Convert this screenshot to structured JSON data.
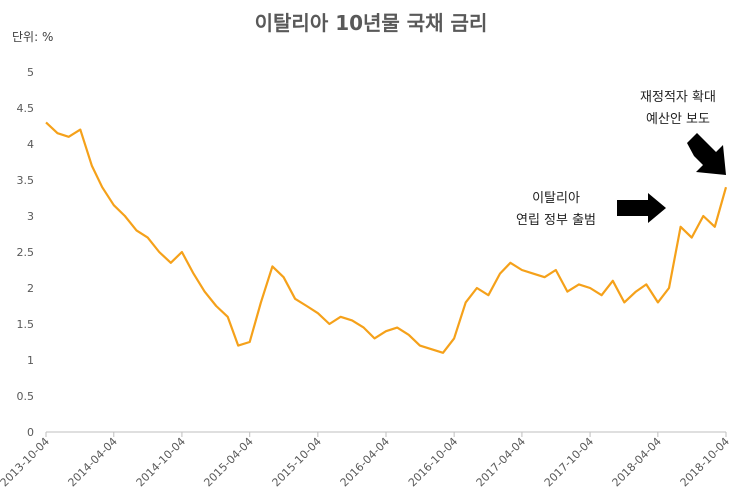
{
  "chart_data": {
    "type": "line",
    "title": "이탈리아 10년물 국채 금리",
    "unit_label": "단위: %",
    "ylim": [
      0,
      5
    ],
    "y_ticks": [
      "0",
      "0.5",
      "1",
      "1.5",
      "2",
      "2.5",
      "3",
      "3.5",
      "4",
      "4.5",
      "5"
    ],
    "x_ticks": [
      "2013-10-04",
      "2014-04-04",
      "2014-10-04",
      "2015-04-04",
      "2015-10-04",
      "2016-04-04",
      "2016-10-04",
      "2017-04-04",
      "2017-10-04",
      "2018-04-04",
      "2018-10-04"
    ],
    "grid": false,
    "line_color": "#f5a11a",
    "series": [
      {
        "x": [
          "2013-10-04",
          "2013-11-04",
          "2013-12-04",
          "2014-01-04",
          "2014-02-04",
          "2014-03-04",
          "2014-04-04",
          "2014-05-04",
          "2014-06-04",
          "2014-07-04",
          "2014-08-04",
          "2014-09-04",
          "2014-10-04",
          "2014-11-04",
          "2014-12-04",
          "2015-01-04",
          "2015-02-04",
          "2015-03-04",
          "2015-04-04",
          "2015-05-04",
          "2015-06-04",
          "2015-07-04",
          "2015-08-04",
          "2015-09-04",
          "2015-10-04",
          "2015-11-04",
          "2015-12-04",
          "2016-01-04",
          "2016-02-04",
          "2016-03-04",
          "2016-04-04",
          "2016-05-04",
          "2016-06-04",
          "2016-07-04",
          "2016-08-04",
          "2016-09-04",
          "2016-10-04",
          "2016-11-04",
          "2016-12-04",
          "2017-01-04",
          "2017-02-04",
          "2017-03-04",
          "2017-04-04",
          "2017-05-04",
          "2017-06-04",
          "2017-07-04",
          "2017-08-04",
          "2017-09-04",
          "2017-10-04",
          "2017-11-04",
          "2017-12-04",
          "2018-01-04",
          "2018-02-04",
          "2018-03-04",
          "2018-04-04",
          "2018-05-04",
          "2018-06-04",
          "2018-07-04",
          "2018-08-04",
          "2018-09-04",
          "2018-10-04"
        ],
        "values": [
          4.3,
          4.15,
          4.1,
          4.2,
          3.7,
          3.4,
          3.15,
          3.0,
          2.8,
          2.7,
          2.5,
          2.35,
          2.5,
          2.2,
          1.95,
          1.75,
          1.6,
          1.2,
          1.25,
          1.8,
          2.3,
          2.15,
          1.85,
          1.75,
          1.65,
          1.5,
          1.6,
          1.55,
          1.45,
          1.3,
          1.4,
          1.45,
          1.35,
          1.2,
          1.15,
          1.1,
          1.3,
          1.8,
          2.0,
          1.9,
          2.2,
          2.35,
          2.25,
          2.2,
          2.15,
          2.25,
          1.95,
          2.05,
          2.0,
          1.9,
          2.1,
          1.8,
          1.95,
          2.05,
          1.8,
          2.0,
          2.85,
          2.7,
          3.0,
          2.85,
          3.4
        ]
      }
    ],
    "annotations": [
      {
        "lines": [
          "이탈리아",
          "연립 정부 출범"
        ]
      },
      {
        "lines": [
          "재정적자 확대",
          "예산안 보도"
        ]
      }
    ]
  }
}
